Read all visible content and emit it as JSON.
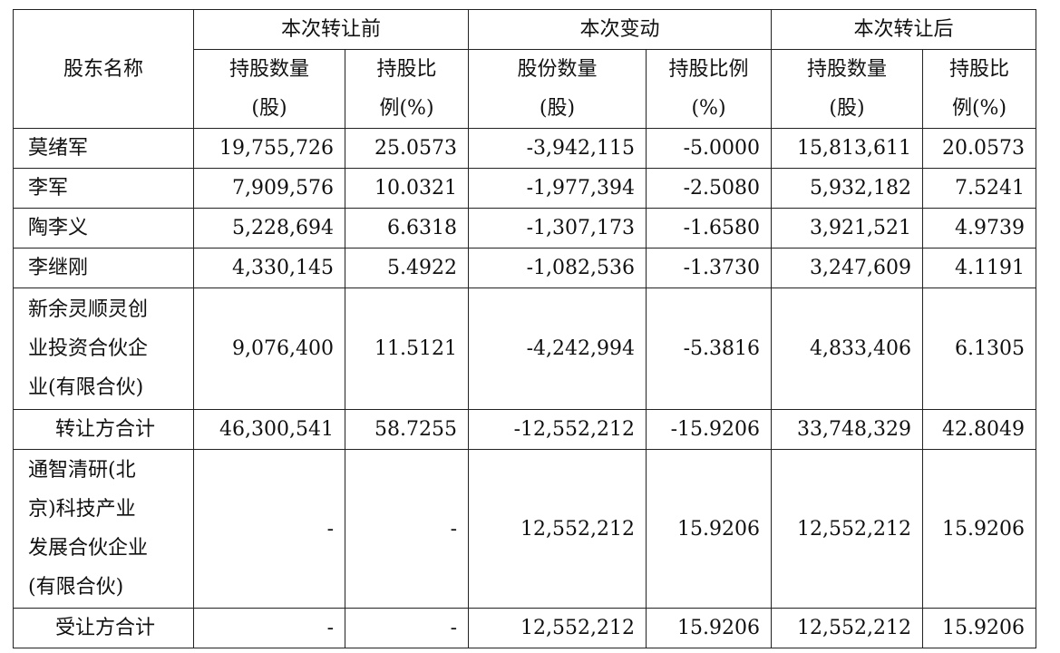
{
  "table": {
    "header": {
      "holder": "股东名称",
      "groups": [
        "本次转让前",
        "本次变动",
        "本次转让后"
      ],
      "columns": [
        [
          "持股数量",
          "(股)"
        ],
        [
          "持股比",
          "例(%)"
        ],
        [
          "股份数量",
          "(股)"
        ],
        [
          "持股比例",
          "(%)"
        ],
        [
          "持股数量",
          "(股)"
        ],
        [
          "持股比",
          "例(%)"
        ]
      ]
    },
    "rows": [
      {
        "name": [
          "莫绪军"
        ],
        "cells": [
          "19,755,726",
          "25.0573",
          "-3,942,115",
          "-5.0000",
          "15,813,611",
          "20.0573"
        ]
      },
      {
        "name": [
          "李军"
        ],
        "cells": [
          "7,909,576",
          "10.0321",
          "-1,977,394",
          "-2.5080",
          "5,932,182",
          "7.5241"
        ]
      },
      {
        "name": [
          "陶李义"
        ],
        "cells": [
          "5,228,694",
          "6.6318",
          "-1,307,173",
          "-1.6580",
          "3,921,521",
          "4.9739"
        ]
      },
      {
        "name": [
          "李继刚"
        ],
        "cells": [
          "4,330,145",
          "5.4922",
          "-1,082,536",
          "-1.3730",
          "3,247,609",
          "4.1191"
        ]
      },
      {
        "name": [
          "新余灵顺灵创",
          "业投资合伙企",
          "业(有限合伙)"
        ],
        "cells": [
          "9,076,400",
          "11.5121",
          "-4,242,994",
          "-5.3816",
          "4,833,406",
          "6.1305"
        ]
      },
      {
        "name": [
          "转让方合计"
        ],
        "cells": [
          "46,300,541",
          "58.7255",
          "-12,552,212",
          "-15.9206",
          "33,748,329",
          "42.8049"
        ]
      },
      {
        "name": [
          "通智清研(北",
          "京)科技产业",
          "发展合伙企业",
          "(有限合伙)"
        ],
        "cells": [
          "-",
          "-",
          "12,552,212",
          "15.9206",
          "12,552,212",
          "15.9206"
        ]
      },
      {
        "name": [
          "受让方合计"
        ],
        "cells": [
          "-",
          "-",
          "12,552,212",
          "15.9206",
          "12,552,212",
          "15.9206"
        ]
      }
    ]
  }
}
